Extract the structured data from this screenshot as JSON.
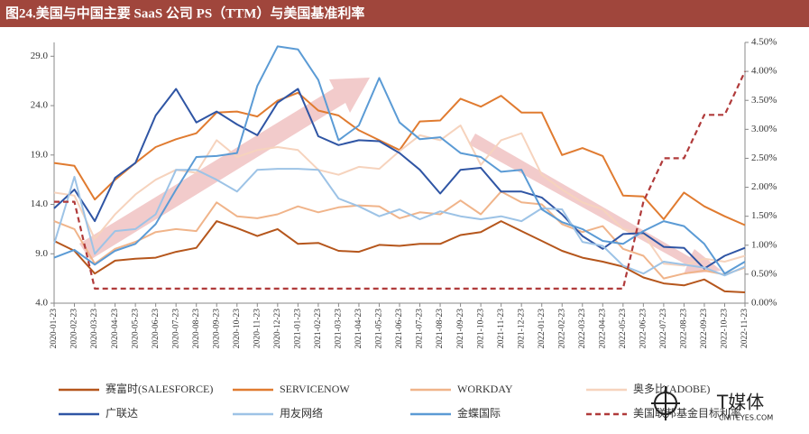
{
  "chart_data": {
    "type": "line",
    "title": "图24.美国与中国主要 SaaS 公司 PS（TTM）与美国基准利率",
    "categories": [
      "2020-01-23",
      "2020-02-23",
      "2020-03-23",
      "2020-04-23",
      "2020-05-23",
      "2020-06-23",
      "2020-07-23",
      "2020-08-23",
      "2020-09-23",
      "2020-10-23",
      "2020-11-23",
      "2020-12-23",
      "2021-01-23",
      "2021-02-23",
      "2021-03-23",
      "2021-04-23",
      "2021-05-23",
      "2021-06-23",
      "2021-07-23",
      "2021-08-23",
      "2021-09-23",
      "2021-10-23",
      "2021-11-23",
      "2021-12-23",
      "2022-01-23",
      "2022-02-23",
      "2022-03-23",
      "2022-04-23",
      "2022-05-23",
      "2022-06-23",
      "2022-07-23",
      "2022-08-23",
      "2022-09-23",
      "2022-10-23",
      "2022-11-23"
    ],
    "series": [
      {
        "name": "赛富时(SALESFORCE)",
        "color": "#b5561c",
        "values": [
          10.3,
          9.3,
          7.0,
          8.3,
          8.5,
          8.6,
          9.2,
          9.6,
          12.3,
          11.6,
          10.8,
          11.5,
          10.0,
          10.1,
          9.3,
          9.2,
          9.9,
          9.8,
          10.0,
          10.0,
          10.9,
          11.2,
          12.3,
          11.3,
          10.3,
          9.3,
          8.6,
          8.2,
          7.7,
          6.6,
          6.0,
          5.8,
          6.4,
          5.2,
          5.1
        ]
      },
      {
        "name": "SERVICENOW",
        "color": "#e07b30",
        "values": [
          18.2,
          17.9,
          14.5,
          16.5,
          18.2,
          19.8,
          20.6,
          21.2,
          23.3,
          23.4,
          22.9,
          24.5,
          25.3,
          23.5,
          23.0,
          21.5,
          20.5,
          19.5,
          22.4,
          22.5,
          24.7,
          23.9,
          25.0,
          23.3,
          23.3,
          19.0,
          19.7,
          18.9,
          14.9,
          14.8,
          12.5,
          15.2,
          13.8,
          12.8,
          11.9
        ]
      },
      {
        "name": "WORKDAY",
        "color": "#f0b48a",
        "values": [
          12.3,
          11.5,
          8.0,
          9.5,
          10.2,
          11.2,
          11.5,
          11.3,
          14.2,
          12.8,
          12.6,
          13.0,
          13.8,
          13.2,
          13.7,
          13.9,
          13.8,
          12.6,
          13.2,
          13.0,
          14.4,
          13.0,
          15.3,
          14.2,
          14.0,
          12.0,
          11.2,
          11.8,
          9.5,
          8.8,
          6.5,
          7.0,
          7.3,
          6.9,
          7.6
        ]
      },
      {
        "name": "奥多比(ADOBE)",
        "color": "#f6d3bd",
        "values": [
          15.2,
          14.9,
          10.5,
          13.0,
          15.0,
          16.5,
          17.5,
          17.2,
          20.5,
          18.8,
          19.5,
          19.8,
          19.5,
          17.5,
          17.0,
          17.8,
          17.6,
          19.4,
          21.0,
          20.5,
          22.0,
          18.0,
          20.5,
          21.2,
          17.0,
          15.5,
          14.2,
          13.5,
          11.5,
          11.0,
          8.0,
          7.8,
          8.5,
          8.2,
          8.8
        ]
      },
      {
        "name": "广联达",
        "color": "#2f55a4",
        "values": [
          13.6,
          15.5,
          12.3,
          16.7,
          18.2,
          23.0,
          25.7,
          22.3,
          23.4,
          22.1,
          21.0,
          24.3,
          25.7,
          20.9,
          20.0,
          20.5,
          20.4,
          19.2,
          17.5,
          15.1,
          17.5,
          17.7,
          15.3,
          15.3,
          14.7,
          13.0,
          10.8,
          9.5,
          11.0,
          11.1,
          9.7,
          9.6,
          7.5,
          8.8,
          9.6
        ]
      },
      {
        "name": "用友网络",
        "color": "#9dc3e6",
        "values": [
          10.0,
          16.8,
          9.0,
          11.3,
          11.5,
          13.0,
          17.5,
          17.5,
          16.5,
          15.3,
          17.5,
          17.6,
          17.6,
          17.5,
          14.6,
          13.8,
          12.8,
          13.5,
          12.5,
          13.3,
          12.8,
          12.5,
          12.8,
          12.3,
          13.6,
          13.5,
          10.2,
          9.8,
          7.8,
          7.0,
          8.2,
          7.9,
          7.6,
          6.8,
          7.7
        ]
      },
      {
        "name": "金蝶国际",
        "color": "#5b9bd5",
        "values": [
          8.6,
          9.4,
          7.9,
          9.3,
          10.0,
          12.0,
          15.5,
          18.8,
          18.9,
          19.2,
          26.0,
          30.0,
          29.7,
          26.6,
          20.5,
          22.0,
          26.8,
          22.3,
          20.6,
          20.8,
          19.2,
          18.8,
          17.3,
          17.5,
          13.5,
          12.2,
          11.5,
          10.3,
          10.0,
          11.3,
          12.3,
          11.8,
          10.0,
          7.0,
          8.2
        ]
      },
      {
        "name": "美国联邦基金目标利率",
        "color": "#b03a3a",
        "axis": "y2",
        "dashed": true,
        "values": [
          1.75,
          1.75,
          0.25,
          0.25,
          0.25,
          0.25,
          0.25,
          0.25,
          0.25,
          0.25,
          0.25,
          0.25,
          0.25,
          0.25,
          0.25,
          0.25,
          0.25,
          0.25,
          0.25,
          0.25,
          0.25,
          0.25,
          0.25,
          0.25,
          0.25,
          0.25,
          0.25,
          0.25,
          0.25,
          1.75,
          2.5,
          2.5,
          3.25,
          3.25,
          4.0
        ]
      }
    ],
    "ylim": [
      4,
      30.4
    ],
    "yticks": [
      {
        "value": 4,
        "label": "4.0"
      },
      {
        "value": 9,
        "label": "9.0"
      },
      {
        "value": 14,
        "label": "14.0"
      },
      {
        "value": 19,
        "label": "19.0"
      },
      {
        "value": 24,
        "label": "24.0"
      },
      {
        "value": 29,
        "label": "29.0"
      }
    ],
    "y2lim": [
      0,
      4.5
    ],
    "y2ticks": [
      {
        "value": 0,
        "label": "0.00%"
      },
      {
        "value": 0.5,
        "label": "0.50%"
      },
      {
        "value": 1,
        "label": "1.00%"
      },
      {
        "value": 1.5,
        "label": "1.50%"
      },
      {
        "value": 2,
        "label": "2.00%"
      },
      {
        "value": 2.5,
        "label": "2.50%"
      },
      {
        "value": 3,
        "label": "3.00%"
      },
      {
        "value": 3.5,
        "label": "3.50%"
      },
      {
        "value": 4,
        "label": "4.00%"
      },
      {
        "value": 4.5,
        "label": "4.50%"
      }
    ],
    "watermark": "T媒体",
    "watermark_sub": "CNITEYES.COM"
  }
}
